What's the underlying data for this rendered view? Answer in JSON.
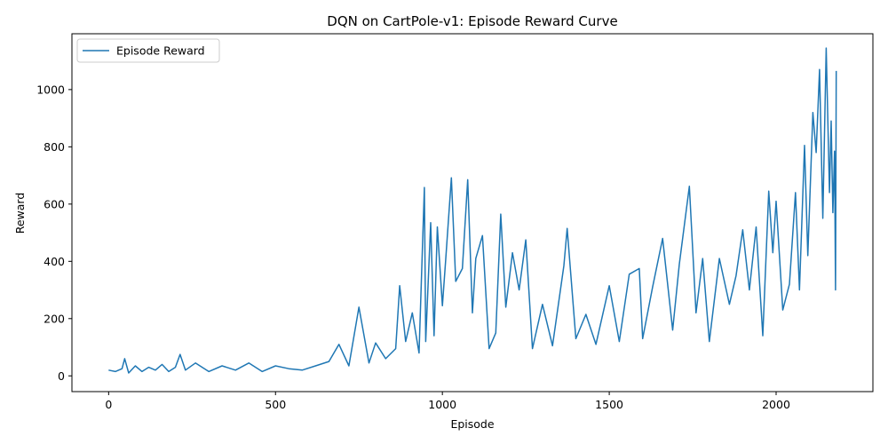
{
  "chart_data": {
    "type": "line",
    "title": "DQN on CartPole-v1: Episode Reward Curve",
    "xlabel": "Episode",
    "ylabel": "Reward",
    "xlim": [
      -110,
      2290
    ],
    "ylim": [
      -55,
      1195
    ],
    "xticks": [
      0,
      500,
      1000,
      1500,
      2000
    ],
    "yticks": [
      0,
      200,
      400,
      600,
      800,
      1000
    ],
    "grid": false,
    "legend_position": "upper-left",
    "color": "#1f77b4",
    "series": [
      {
        "name": "Episode Reward",
        "x": [
          0,
          20,
          40,
          48,
          60,
          80,
          100,
          120,
          140,
          160,
          180,
          200,
          214,
          230,
          260,
          300,
          340,
          380,
          420,
          460,
          500,
          540,
          580,
          620,
          660,
          690,
          720,
          750,
          780,
          800,
          830,
          860,
          872,
          890,
          910,
          930,
          946,
          950,
          965,
          975,
          985,
          1000,
          1010,
          1027,
          1040,
          1060,
          1076,
          1090,
          1100,
          1120,
          1140,
          1160,
          1175,
          1190,
          1210,
          1230,
          1250,
          1270,
          1300,
          1330,
          1364,
          1374,
          1400,
          1430,
          1460,
          1500,
          1530,
          1560,
          1590,
          1600,
          1630,
          1660,
          1690,
          1710,
          1740,
          1760,
          1780,
          1800,
          1830,
          1860,
          1880,
          1900,
          1920,
          1940,
          1960,
          1978,
          1990,
          2000,
          2020,
          2040,
          2058,
          2070,
          2085,
          2095,
          2110,
          2120,
          2130,
          2140,
          2150,
          2160,
          2165,
          2170,
          2175,
          2178,
          2180
        ],
        "values": [
          20,
          15,
          25,
          60,
          10,
          35,
          15,
          30,
          20,
          40,
          15,
          30,
          75,
          20,
          45,
          15,
          35,
          20,
          45,
          15,
          35,
          25,
          20,
          35,
          50,
          110,
          35,
          240,
          45,
          115,
          60,
          95,
          315,
          120,
          220,
          80,
          658,
          120,
          535,
          140,
          520,
          245,
          405,
          692,
          330,
          375,
          685,
          220,
          410,
          490,
          95,
          150,
          565,
          240,
          430,
          300,
          475,
          95,
          250,
          105,
          385,
          515,
          130,
          215,
          110,
          315,
          120,
          355,
          375,
          130,
          310,
          480,
          160,
          390,
          662,
          220,
          410,
          120,
          410,
          250,
          350,
          510,
          300,
          520,
          140,
          645,
          430,
          610,
          230,
          320,
          640,
          300,
          805,
          420,
          920,
          780,
          1070,
          550,
          1145,
          640,
          890,
          570,
          785,
          300,
          1065
        ]
      }
    ]
  }
}
